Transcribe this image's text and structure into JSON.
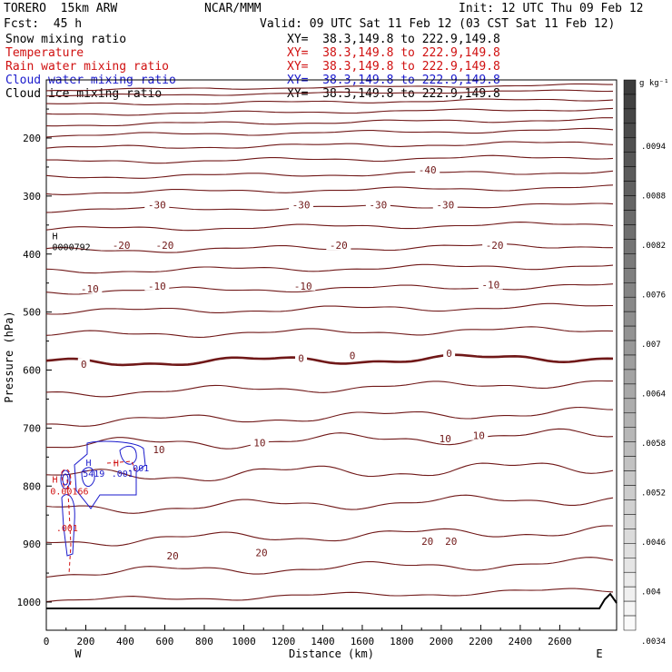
{
  "header": {
    "model": "TORERO  15km ARW",
    "org": "NCAR/MMM",
    "init": "Init: 12 UTC Thu 09 Feb 12",
    "fcst": "Fcst:  45 h",
    "valid": "Valid: 09 UTC Sat 11 Feb 12 (03 CST Sat 11 Feb 12)"
  },
  "fields": [
    {
      "name": "Snow mixing ratio",
      "color": "#000000"
    },
    {
      "name": "Temperature",
      "color": "#d01010"
    },
    {
      "name": "Rain water mixing ratio",
      "color": "#d01010"
    },
    {
      "name": "Cloud water mixing ratio",
      "color": "#1a1acc"
    },
    {
      "name": "Cloud ice mixing ratio",
      "color": "#000000"
    }
  ],
  "xy_lines": [
    {
      "text": "XY=  38.3,149.8 to 222.9,149.8",
      "color": "#000000"
    },
    {
      "text": "XY=  38.3,149.8 to 222.9,149.8",
      "color": "#d01010"
    },
    {
      "text": "XY=  38.3,149.8 to 222.9,149.8",
      "color": "#d01010"
    },
    {
      "text": "XY=  38.3,149.8 to 222.9,149.8",
      "color": "#1a1acc"
    },
    {
      "text": "XY=  38.3,149.8 to 222.9,149.8",
      "color": "#000000"
    }
  ],
  "chart_data": {
    "type": "contour-cross-section",
    "xlabel": "Distance (km)",
    "ylabel": "Pressure (hPa)",
    "xlim": [
      0,
      2750
    ],
    "ylim": [
      1045,
      100
    ],
    "x_ticks": [
      0,
      200,
      400,
      600,
      800,
      1000,
      1200,
      1400,
      1600,
      1800,
      2000,
      2200,
      2400,
      2600
    ],
    "y_ticks": [
      200,
      300,
      400,
      500,
      600,
      700,
      800,
      900,
      1000
    ],
    "x_end_labels": {
      "left": "W",
      "right": "E"
    },
    "colorbar": {
      "unit": "g kg⁻¹",
      "ticks": [
        ".0094",
        ".0088",
        ".0082",
        ".0076",
        ".007",
        ".0064",
        ".0058",
        ".0052",
        ".0046",
        ".004",
        ".0034"
      ]
    },
    "temperature_contour_labels": [
      {
        "value": "-40",
        "x": 1930,
        "p": 255
      },
      {
        "value": "-30",
        "x": 560,
        "p": 315
      },
      {
        "value": "-30",
        "x": 1290,
        "p": 315
      },
      {
        "value": "-30",
        "x": 1680,
        "p": 315
      },
      {
        "value": "-30",
        "x": 2020,
        "p": 315
      },
      {
        "value": "-20",
        "x": 380,
        "p": 385
      },
      {
        "value": "-20",
        "x": 600,
        "p": 385
      },
      {
        "value": "-20",
        "x": 1480,
        "p": 385
      },
      {
        "value": "-20",
        "x": 2270,
        "p": 385
      },
      {
        "value": "-10",
        "x": 220,
        "p": 460
      },
      {
        "value": "-10",
        "x": 560,
        "p": 455
      },
      {
        "value": "-10",
        "x": 1300,
        "p": 455
      },
      {
        "value": "-10",
        "x": 2250,
        "p": 453
      },
      {
        "value": "0",
        "x": 190,
        "p": 590
      },
      {
        "value": "0",
        "x": 1290,
        "p": 580
      },
      {
        "value": "0",
        "x": 1550,
        "p": 575
      },
      {
        "value": "0",
        "x": 2040,
        "p": 571
      },
      {
        "value": "10",
        "x": 570,
        "p": 737
      },
      {
        "value": "10",
        "x": 1080,
        "p": 725
      },
      {
        "value": "10",
        "x": 2020,
        "p": 718
      },
      {
        "value": "10",
        "x": 2190,
        "p": 713
      },
      {
        "value": "20",
        "x": 640,
        "p": 920
      },
      {
        "value": "20",
        "x": 1090,
        "p": 915
      },
      {
        "value": "20",
        "x": 1930,
        "p": 895
      },
      {
        "value": "20",
        "x": 2050,
        "p": 895
      }
    ],
    "annotations": [
      {
        "text": "H",
        "x": 30,
        "p": 368,
        "color": "#000000"
      },
      {
        "text": "0000792",
        "x": 30,
        "p": 387,
        "color": "#000000"
      },
      {
        "text": "H",
        "x": 200,
        "p": 759,
        "color": "#1a1acc"
      },
      {
        "text": "5419",
        "x": 185,
        "p": 778,
        "color": "#1a1acc"
      },
      {
        "text": "H",
        "x": 340,
        "p": 760,
        "color": "#d01010"
      },
      {
        "text": ".001",
        "x": 410,
        "p": 768,
        "color": "#1a1acc"
      },
      {
        "text": ".001",
        "x": 330,
        "p": 778,
        "color": "#1a1acc"
      },
      {
        "text": "H",
        "x": 30,
        "p": 788,
        "color": "#d01010"
      },
      {
        "text": "0.00166",
        "x": 20,
        "p": 808,
        "color": "#d01010"
      },
      {
        "text": ".001",
        "x": 50,
        "p": 872,
        "color": "#d01010"
      }
    ]
  }
}
